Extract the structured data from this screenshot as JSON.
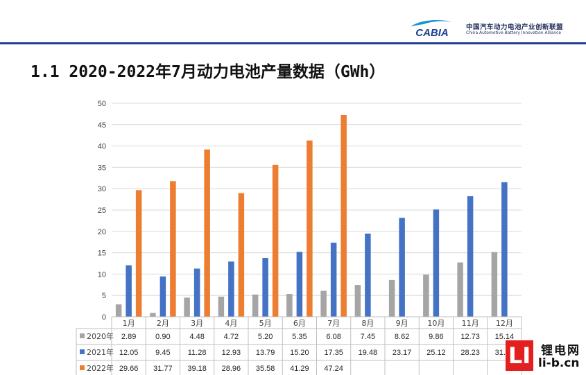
{
  "header": {
    "logo_text": "CABIA",
    "org_name_cn": "中国汽车动力电池产业创新联盟",
    "org_name_en": "China Automotive Battery Innovation Alliance"
  },
  "page_title": "1.1 2020-2022年7月动力电池产量数据（GWh）",
  "colors": {
    "rule": "#1f3f8f",
    "s2020": "#a5a5a5",
    "s2021": "#4472c4",
    "s2022": "#ed7d31"
  },
  "chart_data": {
    "type": "bar",
    "categories": [
      "1月",
      "2月",
      "3月",
      "4月",
      "5月",
      "6月",
      "7月",
      "8月",
      "9月",
      "10月",
      "11月",
      "12月"
    ],
    "series": [
      {
        "name": "2020年",
        "color": "#a5a5a5",
        "values": [
          2.89,
          0.9,
          4.48,
          4.72,
          5.2,
          5.35,
          6.08,
          7.45,
          8.62,
          9.86,
          12.73,
          15.14
        ],
        "labels": [
          "2.89",
          "0.90",
          "4.48",
          "4.72",
          "5.20",
          "5.35",
          "6.08",
          "7.45",
          "8.62",
          "9.86",
          "12.73",
          "15.14"
        ]
      },
      {
        "name": "2021年",
        "color": "#4472c4",
        "values": [
          12.05,
          9.45,
          11.28,
          12.93,
          13.79,
          15.2,
          17.35,
          19.48,
          23.17,
          25.12,
          28.23,
          31.5
        ],
        "labels": [
          "12.05",
          "9.45",
          "11.28",
          "12.93",
          "13.79",
          "15.20",
          "17.35",
          "19.48",
          "23.17",
          "25.12",
          "28.23",
          "31.53"
        ]
      },
      {
        "name": "2022年",
        "color": "#ed7d31",
        "values": [
          29.66,
          31.77,
          39.18,
          28.96,
          35.58,
          41.29,
          47.24,
          null,
          null,
          null,
          null,
          null
        ],
        "labels": [
          "29.66",
          "31.77",
          "39.18",
          "28.96",
          "35.58",
          "41.29",
          "47.24",
          "",
          "",
          "",
          "",
          ""
        ]
      }
    ],
    "yticks": [
      "0",
      "5",
      "10",
      "15",
      "20",
      "25",
      "30",
      "35",
      "40",
      "45",
      "50"
    ],
    "ylim": [
      0,
      50
    ],
    "grid": true,
    "legend": "data-table"
  },
  "watermark": {
    "box": "LI",
    "cn": "锂电网",
    "url": "li-b.cn"
  }
}
